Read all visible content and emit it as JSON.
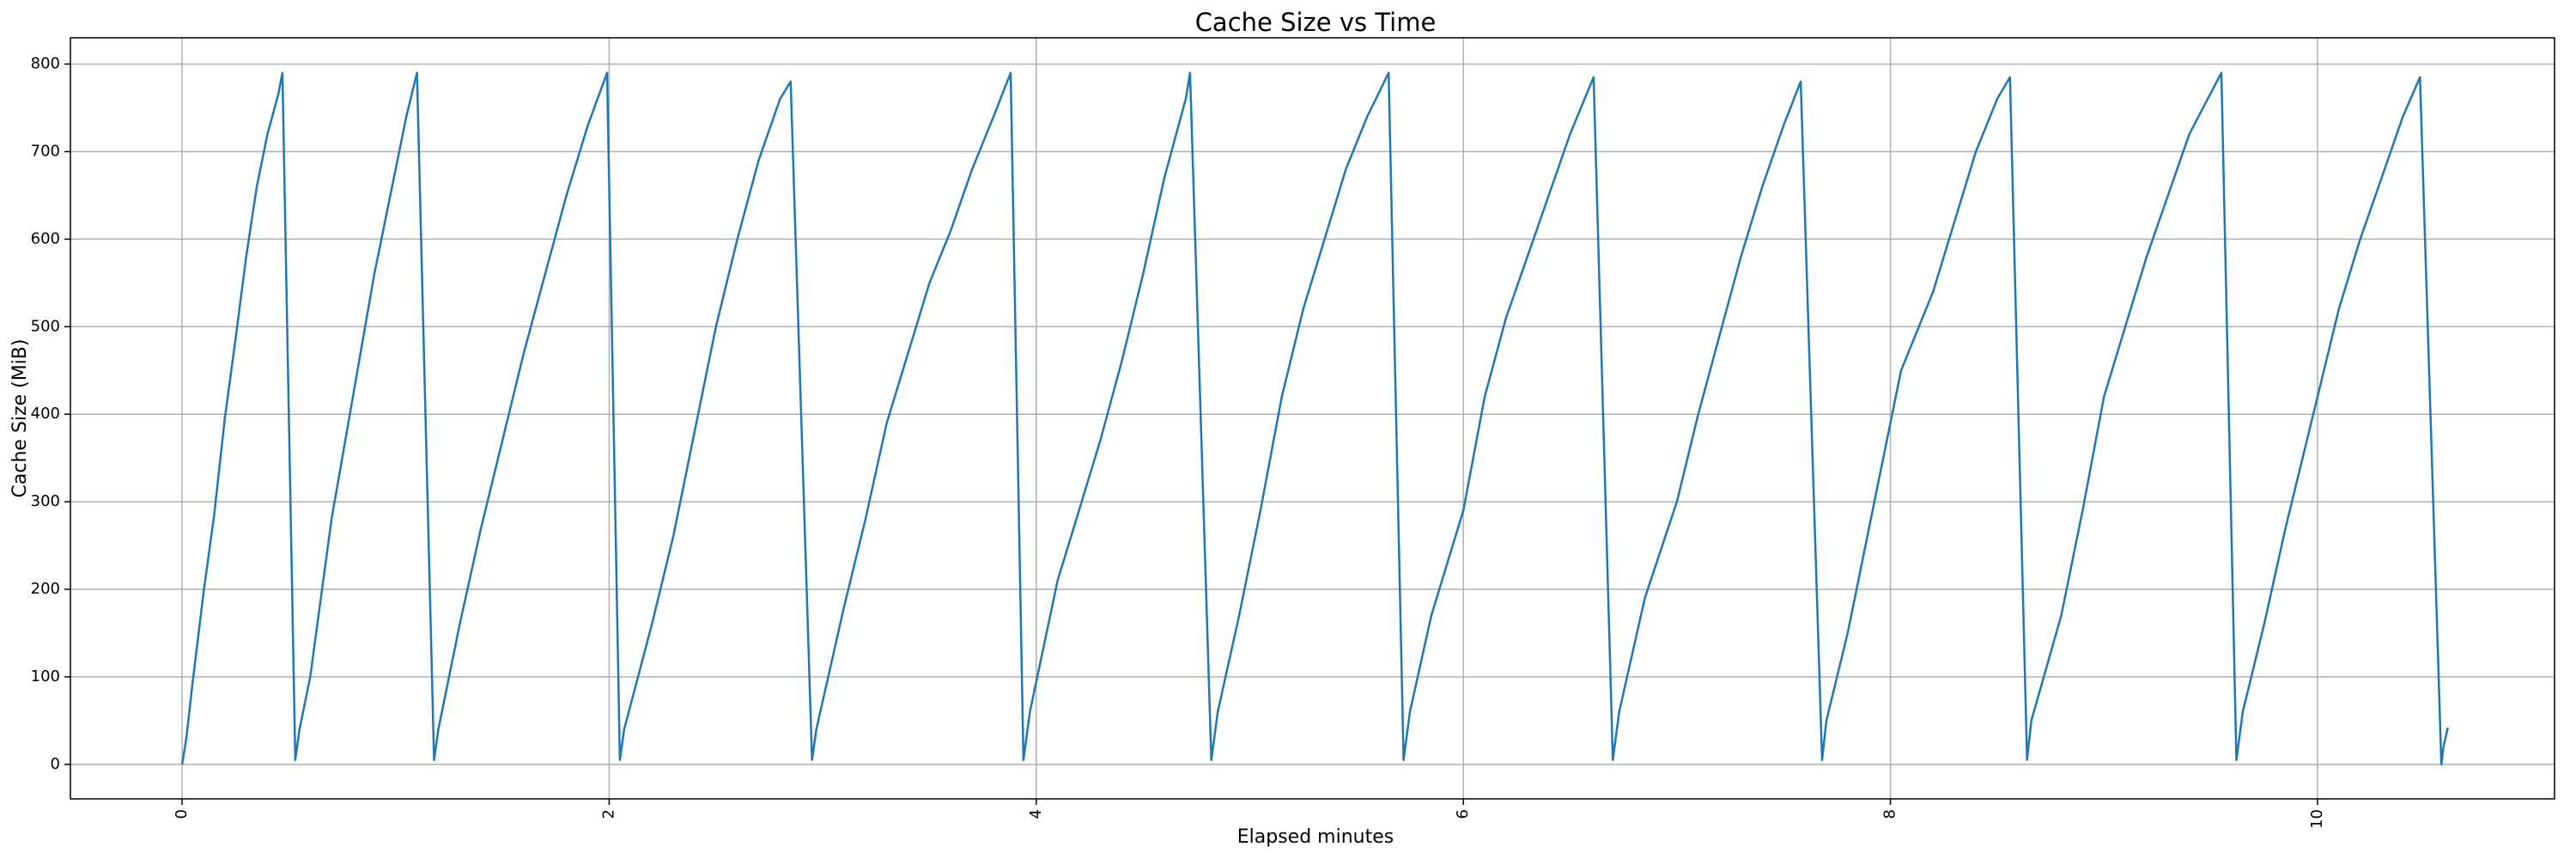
{
  "chart_data": {
    "type": "line",
    "title": "Cache Size vs Time",
    "x_label": "Elapsed minutes",
    "y_label": "Cache Size (MiB)",
    "x": [
      0,
      0.02,
      0.05,
      0.1,
      0.15,
      0.2,
      0.25,
      0.3,
      0.35,
      0.4,
      0.45,
      0.47,
      0.53,
      0.55,
      0.6,
      0.7,
      0.8,
      0.9,
      1.0,
      1.05,
      1.1,
      1.18,
      1.2,
      1.3,
      1.4,
      1.5,
      1.6,
      1.7,
      1.8,
      1.9,
      1.99,
      2.05,
      2.07,
      2.2,
      2.3,
      2.4,
      2.5,
      2.6,
      2.7,
      2.8,
      2.85,
      2.95,
      2.97,
      3.1,
      3.2,
      3.3,
      3.4,
      3.5,
      3.6,
      3.7,
      3.8,
      3.88,
      3.94,
      3.97,
      4.1,
      4.2,
      4.3,
      4.4,
      4.5,
      4.6,
      4.7,
      4.72,
      4.82,
      4.85,
      4.95,
      5.05,
      5.15,
      5.25,
      5.35,
      5.45,
      5.55,
      5.65,
      5.72,
      5.75,
      5.85,
      6.0,
      6.1,
      6.2,
      6.3,
      6.4,
      6.5,
      6.61,
      6.7,
      6.73,
      6.85,
      7.0,
      7.1,
      7.2,
      7.3,
      7.4,
      7.5,
      7.58,
      7.68,
      7.7,
      7.8,
      7.95,
      8.05,
      8.2,
      8.3,
      8.4,
      8.5,
      8.56,
      8.64,
      8.66,
      8.8,
      8.9,
      9.0,
      9.1,
      9.2,
      9.3,
      9.4,
      9.55,
      9.62,
      9.65,
      9.75,
      9.85,
      10.0,
      10.1,
      10.2,
      10.3,
      10.4,
      10.48,
      10.58,
      10.59,
      10.61
    ],
    "values": [
      0,
      30,
      95,
      195,
      285,
      395,
      485,
      580,
      660,
      720,
      765,
      790,
      5,
      40,
      100,
      280,
      420,
      560,
      680,
      740,
      790,
      5,
      40,
      160,
      270,
      370,
      470,
      560,
      650,
      730,
      790,
      5,
      40,
      160,
      260,
      380,
      500,
      600,
      690,
      760,
      780,
      5,
      40,
      180,
      280,
      390,
      470,
      550,
      610,
      680,
      740,
      790,
      5,
      60,
      210,
      290,
      370,
      460,
      560,
      670,
      760,
      790,
      5,
      60,
      170,
      290,
      420,
      520,
      600,
      680,
      740,
      790,
      5,
      60,
      170,
      290,
      420,
      510,
      580,
      650,
      720,
      785,
      5,
      60,
      190,
      300,
      400,
      490,
      580,
      660,
      730,
      780,
      5,
      50,
      150,
      330,
      450,
      540,
      620,
      700,
      760,
      785,
      5,
      50,
      170,
      290,
      420,
      500,
      580,
      650,
      720,
      790,
      5,
      60,
      160,
      270,
      420,
      520,
      600,
      670,
      740,
      785,
      0,
      20,
      42
    ],
    "color": "#1f77b4",
    "xlim": [
      -0.523,
      11.11
    ],
    "ylim": [
      -39.4,
      830
    ],
    "xticks": [
      0,
      2,
      4,
      6,
      8,
      10
    ],
    "yticks": [
      0,
      100,
      200,
      300,
      400,
      500,
      600,
      700,
      800
    ],
    "grid": true
  }
}
